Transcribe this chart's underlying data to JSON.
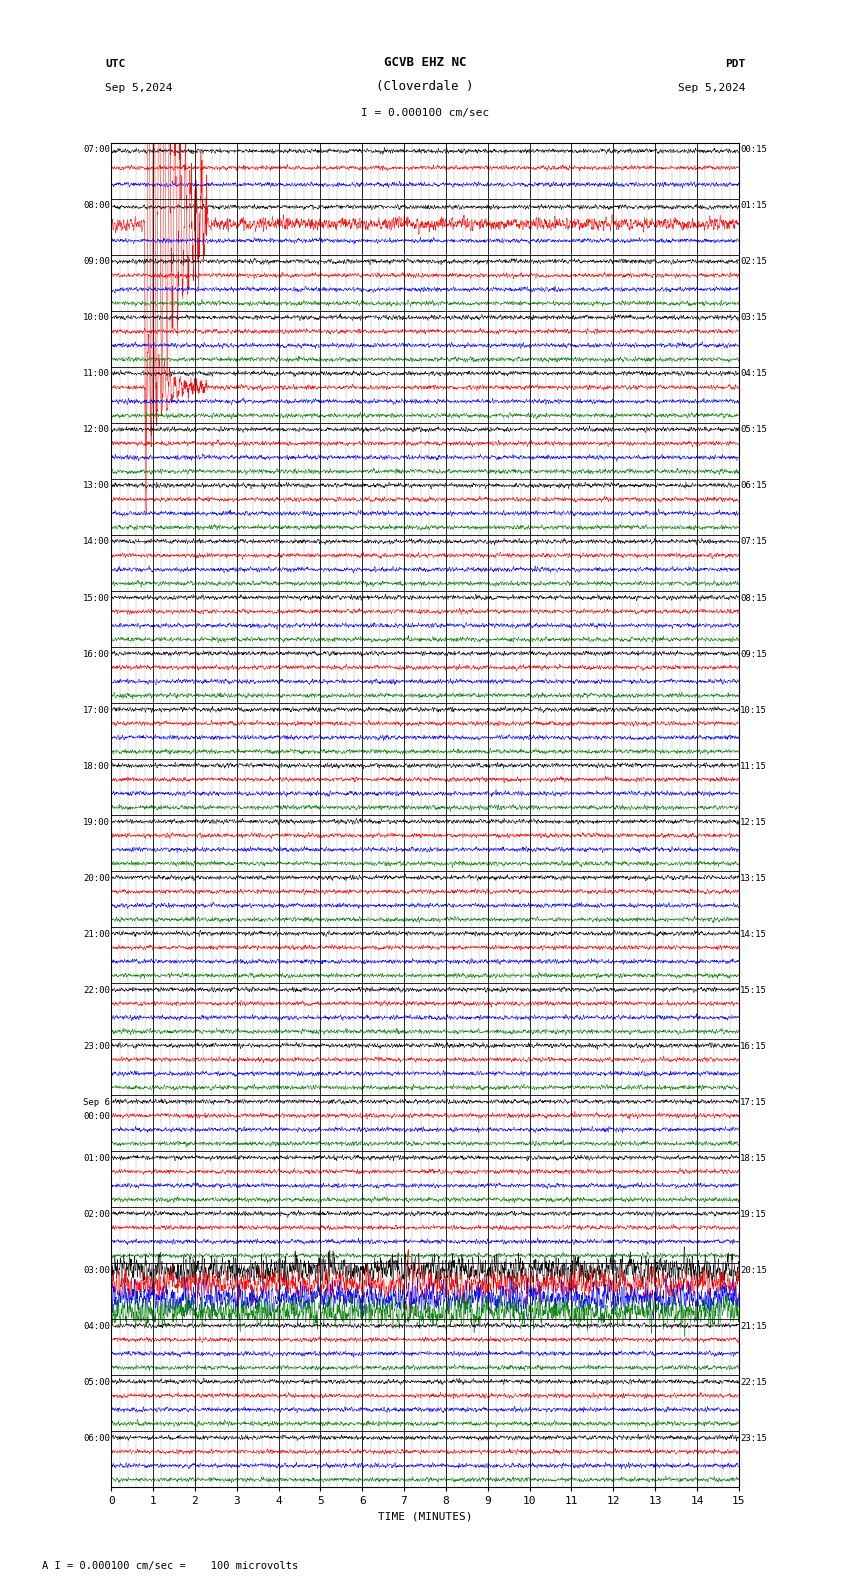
{
  "title_line1": "GCVB EHZ NC",
  "title_line2": "(Cloverdale )",
  "scale_text": "I = 0.000100 cm/sec",
  "utc_label": "UTC",
  "utc_date": "Sep 5,2024",
  "pdt_label": "PDT",
  "pdt_date": "Sep 5,2024",
  "xlabel": "TIME (MINUTES)",
  "footer_text": "A I = 0.000100 cm/sec =    100 microvolts",
  "left_times": [
    "07:00",
    "08:00",
    "09:00",
    "10:00",
    "11:00",
    "12:00",
    "13:00",
    "14:00",
    "15:00",
    "16:00",
    "17:00",
    "18:00",
    "19:00",
    "20:00",
    "21:00",
    "22:00",
    "23:00",
    "Sep 6\n00:00",
    "01:00",
    "02:00",
    "03:00",
    "04:00",
    "05:00",
    "06:00"
  ],
  "right_times": [
    "00:15",
    "01:15",
    "02:15",
    "03:15",
    "04:15",
    "05:15",
    "06:15",
    "07:15",
    "08:15",
    "09:15",
    "10:15",
    "11:15",
    "12:15",
    "13:15",
    "14:15",
    "15:15",
    "16:15",
    "17:15",
    "18:15",
    "19:15",
    "20:15",
    "21:15",
    "22:15",
    "23:15"
  ],
  "n_rows": 24,
  "bg_color": "#ffffff",
  "trace_colors_per_row": {
    "early": [
      "#000000",
      "#ff0000",
      "#0000ff"
    ],
    "mid": [
      "#000000",
      "#ff0000",
      "#0000ff",
      "#008000"
    ],
    "late": [
      "#000000",
      "#ff0000",
      "#0000ff",
      "#008000"
    ]
  },
  "noise_amplitude_tiny": 0.015,
  "noise_amplitude_small": 0.03,
  "noise_amplitude_medium": 0.06,
  "eq1_row": 1,
  "eq1_minute": 0.8,
  "eq1_amp": 0.55,
  "eq2_row": 4,
  "eq2_minute": 0.8,
  "eq2_amp": 0.35,
  "eq3_row": 20,
  "eq3_minute": 7.0,
  "eq3_amp": 0.25,
  "xticks": [
    0,
    1,
    2,
    3,
    4,
    5,
    6,
    7,
    8,
    9,
    10,
    11,
    12,
    13,
    14,
    15
  ]
}
